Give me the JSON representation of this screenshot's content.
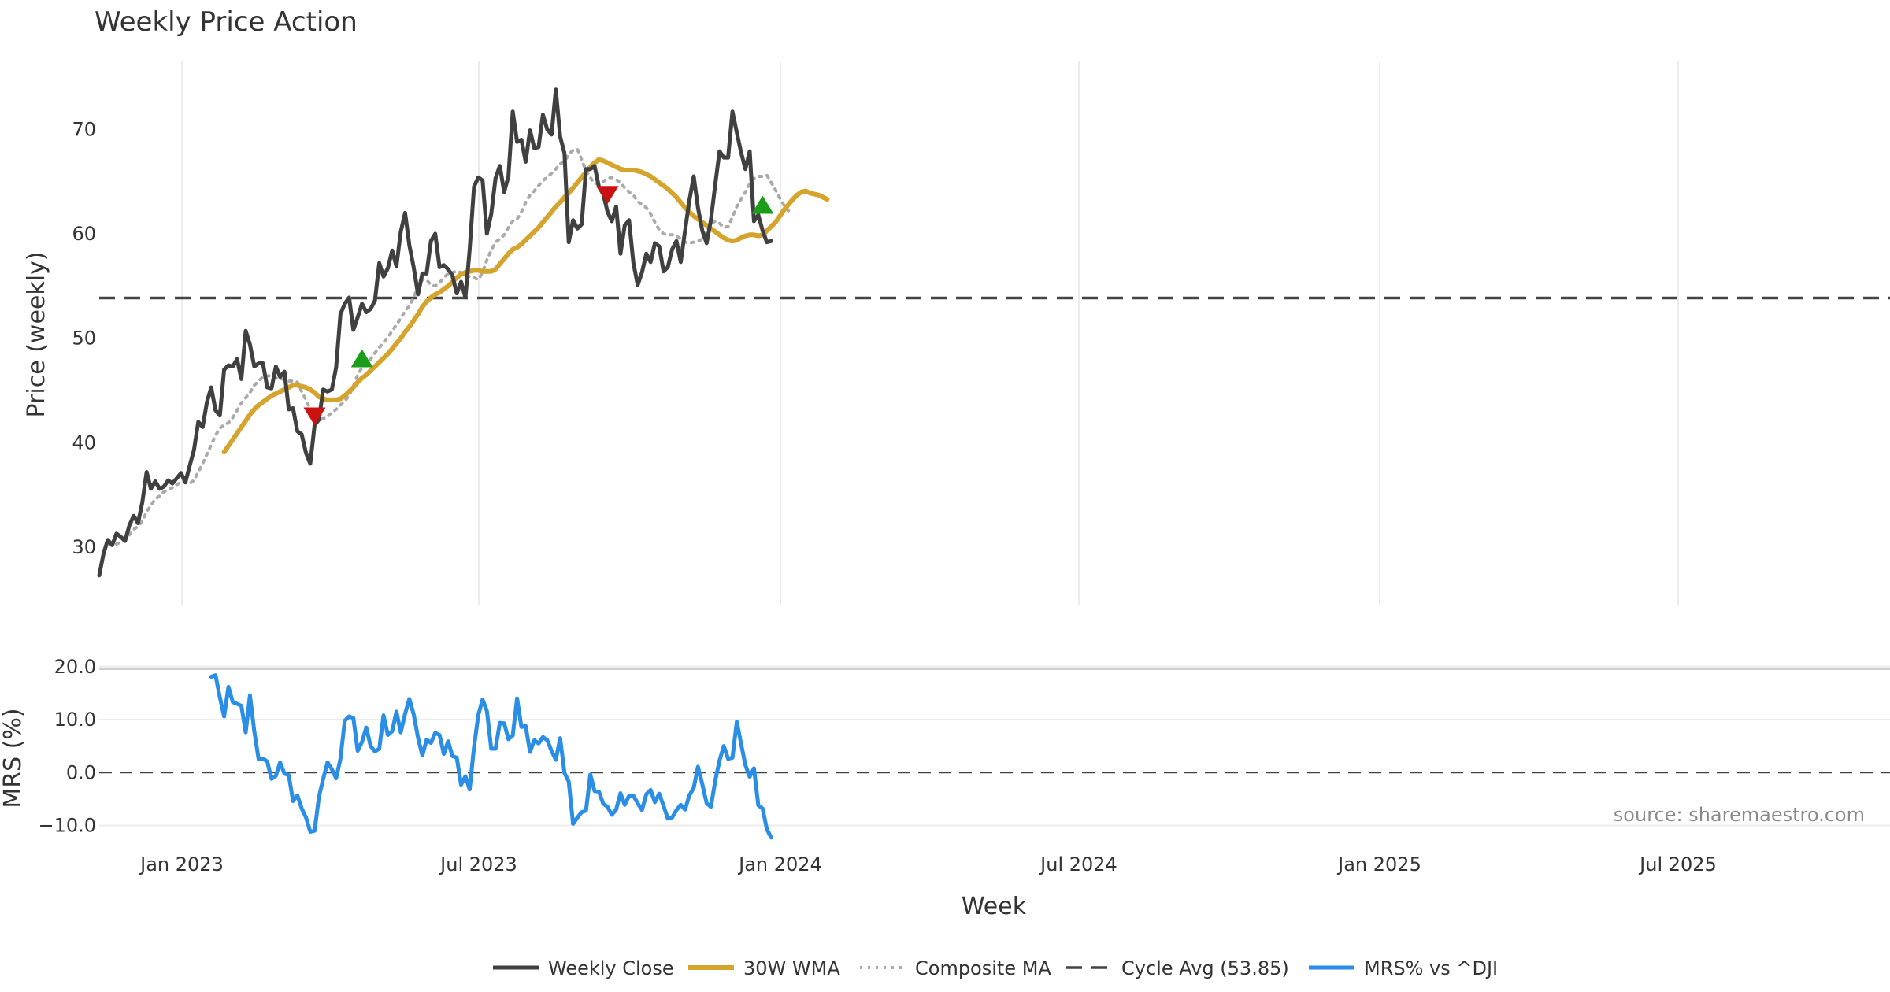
{
  "chart_data": {
    "type": "line",
    "title": "Weekly Price Action",
    "xlabel": "Week",
    "source": "source: sharemaestro.com",
    "x_tick_labels": [
      "Jan 2023",
      "Jul 2023",
      "Jan 2024",
      "Jul 2024",
      "Jan 2025",
      "Jul 2025"
    ],
    "grid": true,
    "legend_position": "bottom-center",
    "price_panel": {
      "ylabel": "Price (weekly)",
      "ylim": [
        24.5,
        76.5
      ],
      "yticks": [
        30,
        40,
        50,
        60,
        70
      ],
      "cycle_avg": 53.85,
      "series": [
        {
          "name": "Weekly Close",
          "color": "#404040",
          "style": "solid",
          "start_index": 0,
          "values": [
            27.3,
            29.4,
            30.7,
            30.2,
            31.3,
            31.0,
            30.6,
            32.1,
            33.0,
            32.3,
            34.3,
            37.2,
            35.6,
            36.3,
            35.6,
            35.8,
            36.4,
            36.1,
            36.6,
            37.1,
            36.2,
            37.8,
            39.3,
            42.0,
            41.5,
            43.9,
            45.3,
            43.1,
            42.6,
            47.0,
            47.4,
            47.3,
            48.0,
            46.1,
            50.7,
            49.4,
            47.3,
            47.6,
            47.6,
            45.3,
            45.2,
            47.3,
            46.3,
            46.8,
            43.2,
            43.3,
            41.1,
            40.8,
            39.0,
            38.0,
            41.7,
            42.2,
            45.1,
            44.9,
            45.1,
            47.2,
            52.3,
            53.3,
            53.9,
            50.8,
            52.0,
            53.3,
            52.5,
            52.8,
            53.6,
            57.2,
            55.9,
            56.7,
            58.4,
            56.9,
            60.2,
            62.0,
            58.9,
            56.8,
            54.2,
            56.2,
            56.2,
            59.3,
            60.0,
            56.8,
            57.0,
            56.6,
            56.0,
            54.3,
            55.4,
            53.9,
            58.5,
            64.5,
            65.4,
            65.1,
            60.0,
            61.9,
            65.3,
            66.5,
            64.0,
            65.5,
            71.7,
            68.8,
            69.0,
            66.9,
            69.9,
            68.2,
            68.3,
            71.4,
            70.0,
            69.5,
            73.8,
            69.3,
            67.7,
            59.2,
            61.3,
            60.5,
            60.9,
            66.2,
            66.2,
            66.5,
            64.5,
            63.8,
            62.1,
            61.2,
            62.6,
            58.1,
            60.8,
            61.3,
            57.2,
            55.1,
            56.3,
            58.1,
            57.3,
            59.1,
            58.8,
            56.4,
            56.8,
            58.5,
            59.3,
            57.3,
            60.3,
            63.2,
            65.5,
            62.5,
            60.3,
            59.1,
            61.3,
            64.7,
            67.9,
            67.3,
            67.3,
            71.7,
            69.7,
            67.8,
            66.2,
            67.9,
            61.2,
            61.8,
            60.3,
            59.2,
            59.3
          ]
        },
        {
          "name": "30W WMA",
          "color": "#d4a42c",
          "style": "solid",
          "start_index": 29,
          "values": [
            39.1,
            39.7,
            40.3,
            40.9,
            41.5,
            42.1,
            42.7,
            43.2,
            43.6,
            43.9,
            44.2,
            44.5,
            44.7,
            44.9,
            45.1,
            45.3,
            45.5,
            45.5,
            45.4,
            45.3,
            45.1,
            44.8,
            44.4,
            44.2,
            44.1,
            44.1,
            44.1,
            44.2,
            44.5,
            44.9,
            45.3,
            45.8,
            46.2,
            46.5,
            46.9,
            47.3,
            47.7,
            48.1,
            48.5,
            49.0,
            49.5,
            50.0,
            50.6,
            51.1,
            51.7,
            52.3,
            53.0,
            53.5,
            53.9,
            54.2,
            54.4,
            54.7,
            55.0,
            55.4,
            55.8,
            56.1,
            56.3,
            56.4,
            56.5,
            56.5,
            56.4,
            56.4,
            56.4,
            56.6,
            57.1,
            57.6,
            58.1,
            58.5,
            58.7,
            59.0,
            59.4,
            59.8,
            60.2,
            60.6,
            61.1,
            61.6,
            62.1,
            62.6,
            63.0,
            63.5,
            63.9,
            64.4,
            64.9,
            65.4,
            65.9,
            66.4,
            66.8,
            67.1,
            67.0,
            66.8,
            66.6,
            66.4,
            66.2,
            66.1,
            66.1,
            66.1,
            66.0,
            65.9,
            65.7,
            65.5,
            65.2,
            64.9,
            64.6,
            64.3,
            63.9,
            63.5,
            63.0,
            62.5,
            62.1,
            61.7,
            61.4,
            61.1,
            60.8,
            60.5,
            60.2,
            59.9,
            59.6,
            59.4,
            59.3,
            59.4,
            59.6,
            59.8,
            59.9,
            59.9,
            59.8,
            59.9,
            60.3,
            60.7,
            61.1,
            61.7,
            62.3,
            62.8,
            63.3,
            63.7,
            64.0,
            64.1,
            63.9,
            63.8,
            63.7,
            63.5,
            63.3
          ]
        },
        {
          "name": "Composite MA",
          "color": "#aaaaaa",
          "style": "dotted",
          "start_index": 4,
          "values": [
            30.3,
            30.5,
            30.8,
            31.2,
            31.7,
            32.0,
            32.5,
            33.4,
            34.0,
            34.6,
            34.9,
            35.3,
            35.5,
            35.7,
            36.0,
            36.2,
            36.3,
            36.1,
            36.4,
            37.2,
            38.0,
            38.9,
            39.8,
            40.7,
            41.4,
            41.7,
            41.9,
            42.4,
            43.1,
            43.8,
            44.3,
            44.8,
            45.5,
            45.9,
            46.3,
            46.4,
            46.4,
            46.2,
            46.1,
            46.1,
            45.9,
            45.9,
            45.8,
            44.9,
            44.1,
            43.2,
            42.5,
            42.2,
            42.3,
            42.5,
            42.9,
            43.2,
            43.6,
            44.0,
            44.5,
            45.4,
            46.5,
            47.2,
            47.5,
            48.0,
            48.6,
            49.1,
            49.6,
            50.1,
            50.7,
            51.3,
            51.9,
            52.6,
            53.1,
            53.9,
            55.0,
            55.6,
            55.6,
            55.1,
            55.0,
            55.3,
            55.8,
            56.2,
            56.3,
            56.4,
            56.3,
            56.1,
            55.9,
            55.8,
            55.6,
            56.3,
            57.5,
            58.4,
            59.2,
            59.5,
            59.9,
            60.6,
            61.2,
            61.4,
            62.1,
            63.0,
            63.7,
            64.1,
            64.6,
            65.1,
            65.4,
            65.8,
            66.2,
            66.7,
            66.9,
            67.6,
            68.0,
            68.1,
            67.1,
            66.0,
            65.4,
            64.8,
            64.8,
            65.0,
            65.3,
            65.4,
            65.2,
            64.9,
            64.4,
            64.0,
            63.7,
            63.1,
            62.8,
            62.5,
            61.9,
            61.1,
            60.4,
            60.0,
            59.9,
            59.9,
            59.8,
            59.5,
            59.2,
            59.1,
            59.2,
            59.3,
            59.5,
            60.2,
            61.0,
            61.2,
            61.0,
            60.6,
            60.7,
            61.6,
            62.6,
            63.3,
            64.0,
            64.8,
            65.3,
            65.5,
            65.5,
            65.6,
            64.9,
            64.2,
            63.4,
            62.7,
            62.2
          ]
        }
      ],
      "signals": [
        {
          "type": "sell",
          "index": 50,
          "value": 42.7,
          "color": "#cc1111"
        },
        {
          "type": "buy",
          "index": 61,
          "value": 47.9,
          "color": "#1a9e1a"
        },
        {
          "type": "sell",
          "index": 118,
          "value": 63.9,
          "color": "#cc1111"
        },
        {
          "type": "buy",
          "index": 154,
          "value": 62.6,
          "color": "#1a9e1a"
        }
      ]
    },
    "mrs_panel": {
      "ylabel": "MRS (%)",
      "ylim": [
        -13.5,
        22.5
      ],
      "yticks": [
        -10.0,
        0.0,
        10.0,
        20.0
      ],
      "ytick_labels": [
        "−10.0",
        "0.0",
        "10.0",
        "20.0"
      ],
      "series": [
        {
          "name": "MRS% vs ^DJI",
          "color": "#2a8ee6",
          "style": "solid",
          "start_index": 26,
          "values": [
            18.1,
            18.4,
            14.2,
            10.6,
            16.2,
            13.3,
            13.0,
            12.6,
            7.6,
            14.6,
            7.8,
            2.5,
            2.6,
            2.1,
            -1.2,
            -0.6,
            1.9,
            -0.2,
            -0.5,
            -5.4,
            -4.3,
            -6.8,
            -8.5,
            -11.2,
            -11.0,
            -4.6,
            -1.2,
            1.9,
            0.6,
            -1.1,
            2.6,
            9.8,
            10.6,
            10.3,
            4.1,
            5.8,
            8.5,
            5.0,
            4.0,
            4.5,
            10.8,
            7.1,
            7.8,
            11.5,
            7.6,
            11.1,
            13.9,
            11.0,
            6.6,
            3.2,
            6.2,
            5.6,
            7.5,
            7.1,
            3.5,
            5.9,
            3.1,
            2.8,
            -2.3,
            -0.7,
            -3.2,
            4.8,
            10.9,
            13.8,
            11.6,
            4.5,
            4.5,
            9.4,
            9.3,
            6.3,
            7.0,
            14.0,
            8.6,
            8.8,
            3.9,
            6.1,
            5.5,
            6.7,
            6.1,
            4.1,
            2.4,
            6.5,
            -0.1,
            -1.7,
            -9.7,
            -8.5,
            -7.5,
            -7.2,
            -0.4,
            -3.5,
            -3.6,
            -5.9,
            -6.5,
            -8.0,
            -7.0,
            -3.9,
            -6.1,
            -4.4,
            -4.4,
            -5.8,
            -7.1,
            -4.1,
            -3.3,
            -5.6,
            -4.0,
            -6.3,
            -8.7,
            -8.5,
            -7.1,
            -6.1,
            -7.0,
            -4.3,
            -2.9,
            1.1,
            -2.2,
            -5.8,
            -6.5,
            -1.6,
            2.3,
            5.0,
            2.6,
            2.8,
            9.6,
            5.5,
            1.4,
            -0.8,
            0.8,
            -6.2,
            -6.8,
            -10.7,
            -12.3
          ]
        }
      ]
    },
    "legend": [
      "Weekly Close",
      "30W WMA",
      "Composite MA",
      "Cycle Avg (53.85)",
      "MRS% vs ^DJI"
    ]
  }
}
